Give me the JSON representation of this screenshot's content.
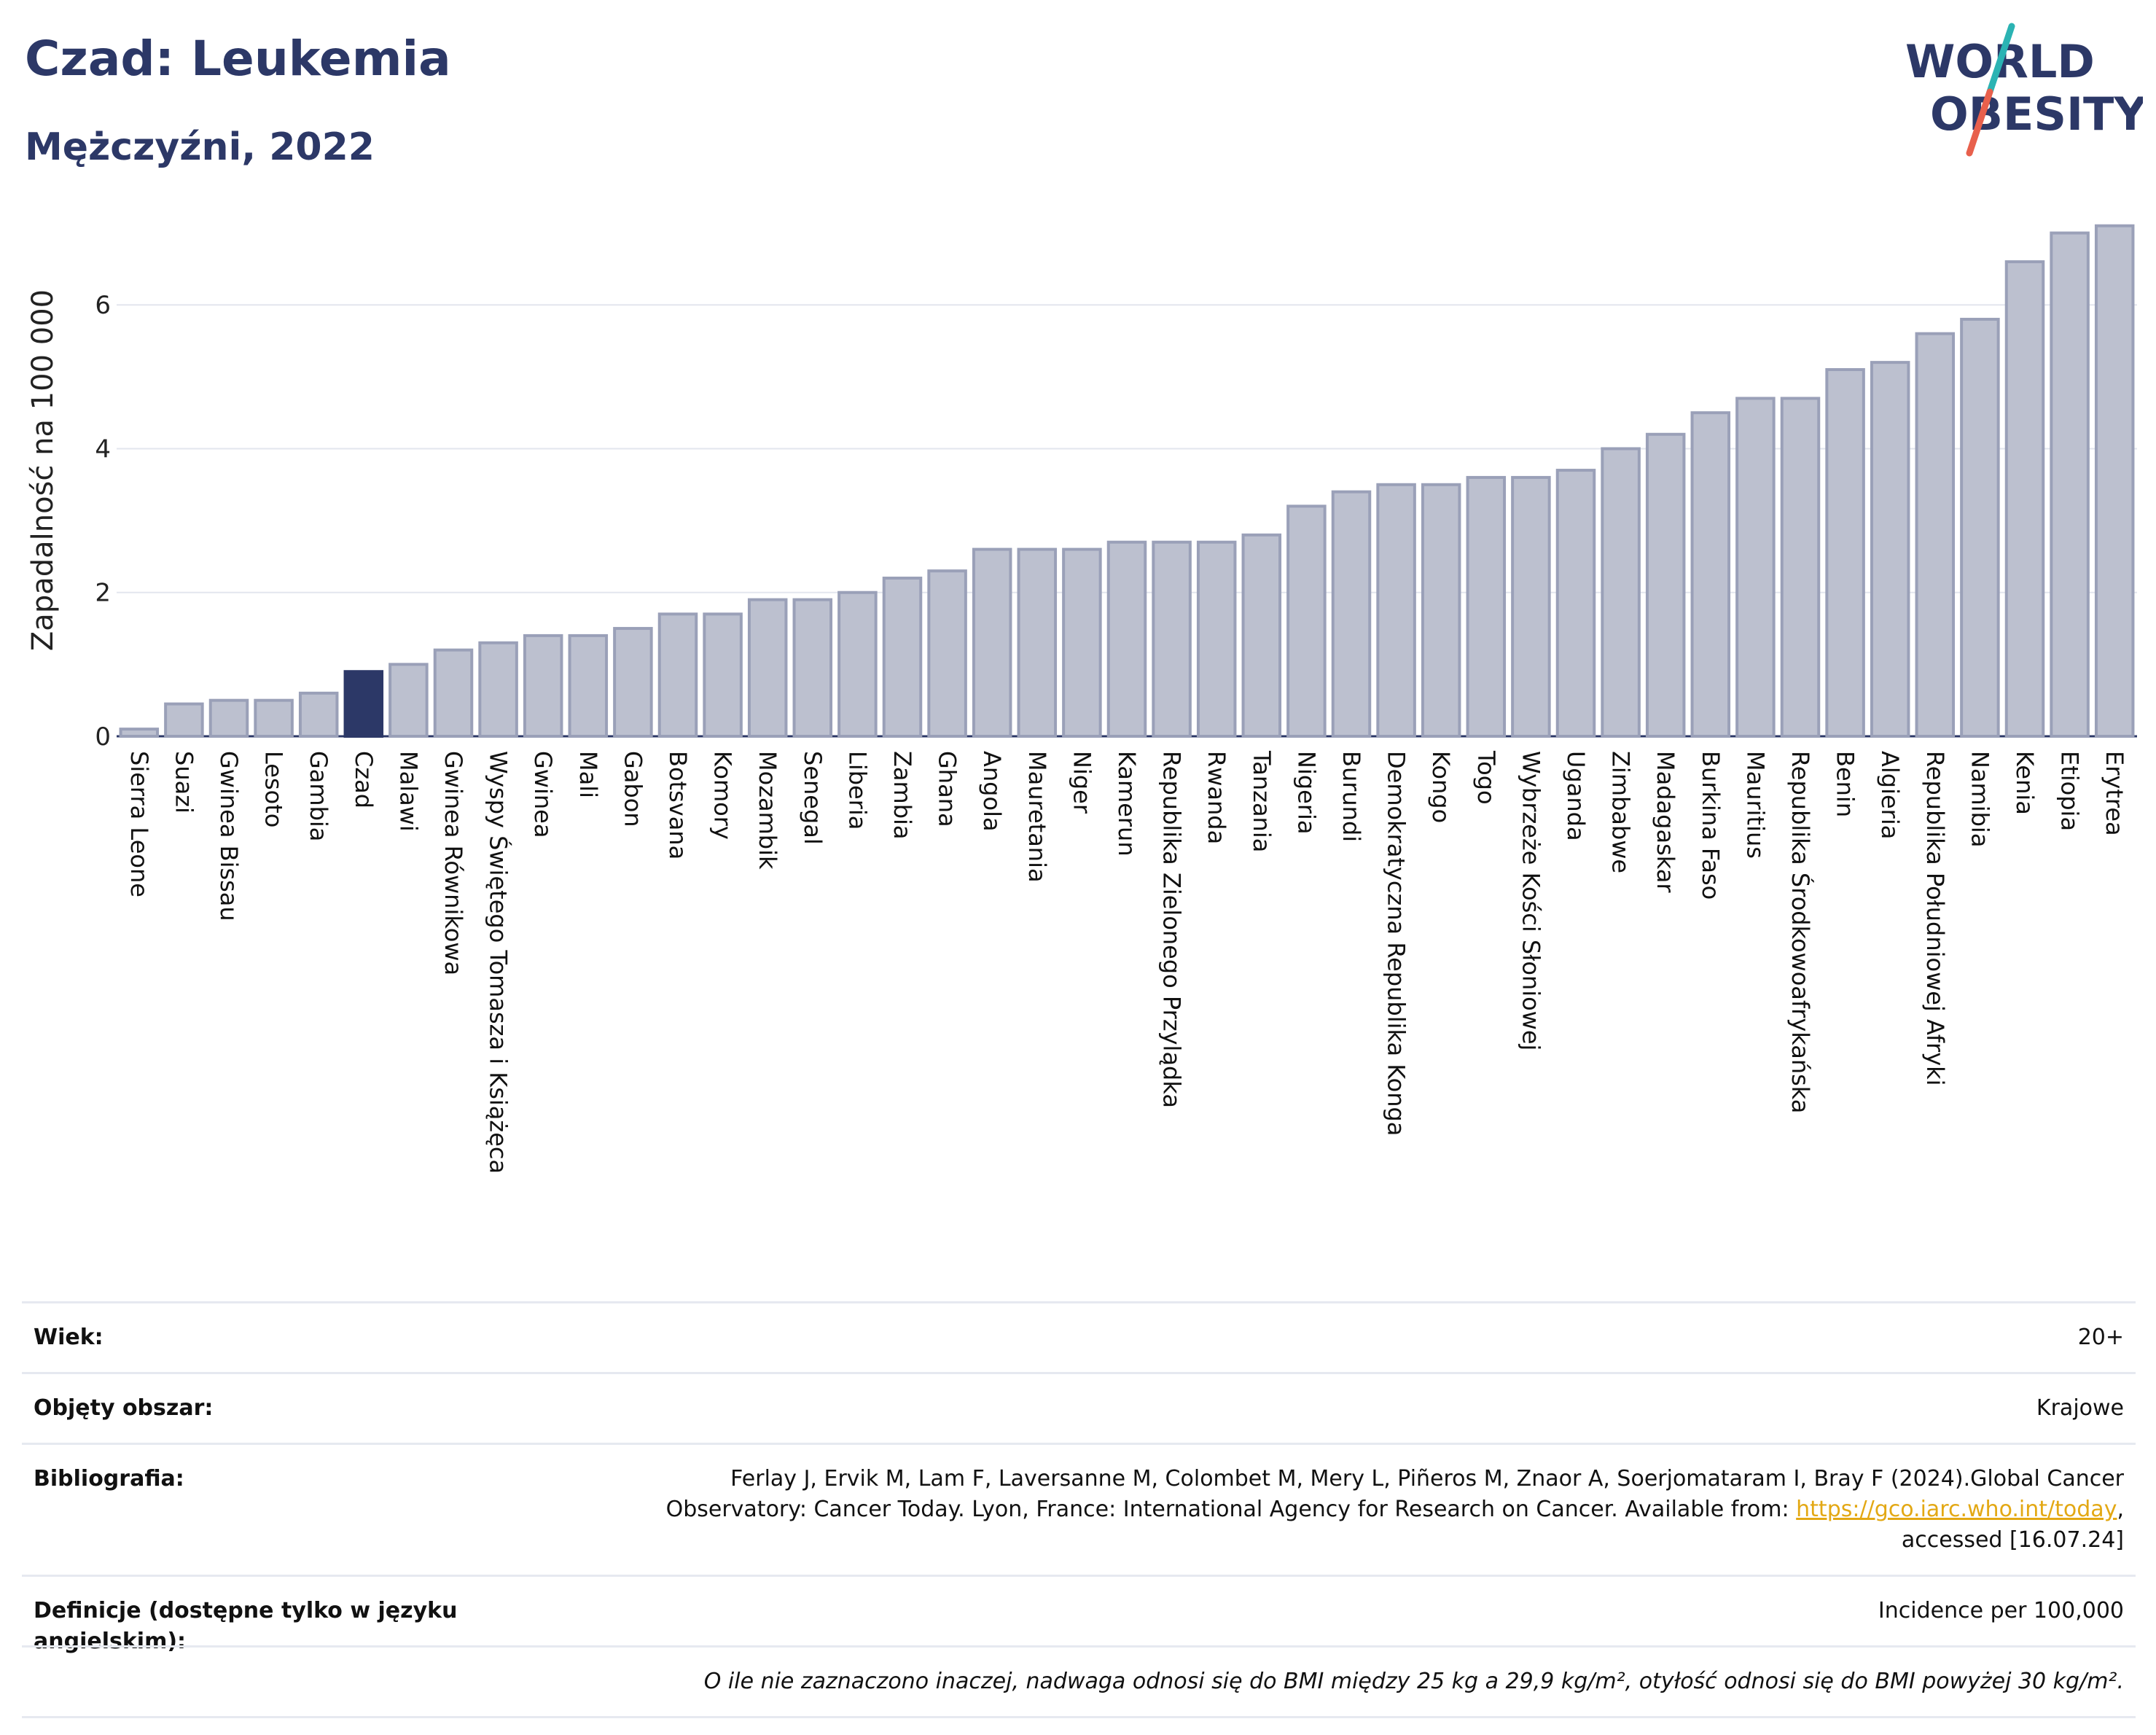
{
  "header": {
    "title": "Czad: Leukemia",
    "subtitle": "Mężczyźni, 2022",
    "logo_line1": "WORLD",
    "logo_line2": "OBESITY"
  },
  "colors": {
    "title": "#2c3867",
    "bar_default": "#bcc0cf",
    "bar_default_stroke": "#9aa0b8",
    "bar_highlight": "#2c3867",
    "logo_slash_top": "#2bb3b3",
    "logo_slash_bottom": "#e8604c",
    "link": "#e3a814"
  },
  "chart_data": {
    "type": "bar",
    "ylabel": "Zapadalność na 100 000",
    "ylim": [
      0,
      7.3
    ],
    "yticks": [
      0,
      2,
      4,
      6
    ],
    "grid": true,
    "highlight": "Czad",
    "categories": [
      "Sierra Leone",
      "Suazi",
      "Gwinea Bissau",
      "Lesoto",
      "Gambia",
      "Czad",
      "Malawi",
      "Gwinea Równikowa",
      "Wyspy Świętego Tomasza i Książęca",
      "Gwinea",
      "Mali",
      "Gabon",
      "Botsvana",
      "Komory",
      "Mozambik",
      "Senegal",
      "Liberia",
      "Zambia",
      "Ghana",
      "Angola",
      "Mauretania",
      "Niger",
      "Kamerun",
      "Republika Zielonego Przylądka",
      "Rwanda",
      "Tanzania",
      "Nigeria",
      "Burundi",
      "Demokratyczna Republika Konga",
      "Kongo",
      "Togo",
      "Wybrzeże Kości Słoniowej",
      "Uganda",
      "Zimbabwe",
      "Madagaskar",
      "Burkina Faso",
      "Mauritius",
      "Republika Środkowoafrykańska",
      "Benin",
      "Algieria",
      "Republika Południowej Afryki",
      "Namibia",
      "Kenia",
      "Etiopia",
      "Erytrea"
    ],
    "values": [
      0.1,
      0.45,
      0.5,
      0.5,
      0.6,
      0.9,
      1.0,
      1.2,
      1.3,
      1.4,
      1.4,
      1.5,
      1.7,
      1.7,
      1.9,
      1.9,
      2.0,
      2.2,
      2.3,
      2.6,
      2.6,
      2.6,
      2.7,
      2.7,
      2.7,
      2.8,
      3.2,
      3.4,
      3.5,
      3.5,
      3.6,
      3.6,
      3.7,
      4.0,
      4.2,
      4.5,
      4.7,
      4.7,
      5.1,
      5.2,
      5.6,
      5.8,
      6.6,
      7.0,
      7.1
    ]
  },
  "meta": {
    "age_label": "Wiek:",
    "age_value": "20+",
    "area_label": "Objęty obszar:",
    "area_value": "Krajowe",
    "bib_label": "Bibliografia:",
    "bib_line1": "Ferlay J, Ervik M, Lam F, Laversanne M, Colombet M, Mery L, Piñeros M, Znaor A, Soerjomataram I, Bray F (2024).Global Cancer",
    "bib_line2_pre": "Observatory: Cancer Today. Lyon, France: International Agency for Research on Cancer. Available from: ",
    "bib_link": "https://gco.iarc.who.int/today",
    "bib_line2_post": ",",
    "bib_line3": "accessed [16.07.24]",
    "def_label": "Definicje (dostępne tylko w języku angielskim):",
    "def_value": "Incidence per 100,000",
    "footnote": "O ile nie zaznaczono inaczej, nadwaga odnosi się do BMI między 25 kg a 29,9 kg/m², otyłość odnosi się do BMI powyżej 30 kg/m²."
  }
}
